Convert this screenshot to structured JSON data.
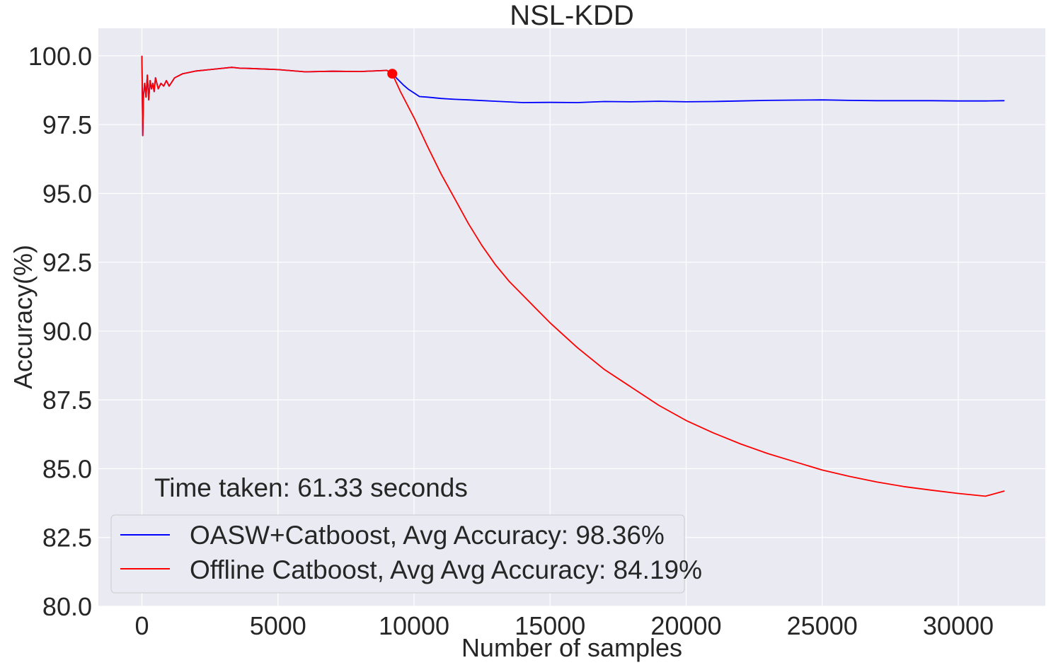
{
  "chart_data": {
    "type": "line",
    "title": "NSL-KDD",
    "xlabel": "Number of samples",
    "ylabel": "Accuracy(%)",
    "xlim": [
      -1600,
      33200
    ],
    "ylim": [
      80.0,
      101.0
    ],
    "xticks": [
      0,
      5000,
      10000,
      15000,
      20000,
      25000,
      30000
    ],
    "yticks": [
      80.0,
      82.5,
      85.0,
      87.5,
      90.0,
      92.5,
      95.0,
      97.5,
      100.0
    ],
    "xtick_labels": [
      "0",
      "5000",
      "10000",
      "15000",
      "20000",
      "25000",
      "30000"
    ],
    "ytick_labels": [
      "80.0",
      "82.5",
      "85.0",
      "87.5",
      "90.0",
      "92.5",
      "95.0",
      "97.5",
      "100.0"
    ],
    "grid": true,
    "legend_position": "lower-left",
    "annotation": "Time taken: 61.33 seconds",
    "drift_marker": {
      "x": 9200,
      "y": 99.35,
      "color": "#ff0000"
    },
    "series": [
      {
        "name": "OASW+Catboost, Avg Accuracy: 98.36%",
        "color": "#0000ff",
        "x": [
          0,
          30,
          60,
          100,
          150,
          200,
          250,
          300,
          350,
          400,
          450,
          500,
          600,
          700,
          800,
          900,
          1000,
          1200,
          1500,
          2000,
          2500,
          3000,
          3300,
          3600,
          4000,
          5000,
          6000,
          7000,
          8000,
          9000,
          9200,
          9400,
          9600,
          9800,
          10000,
          10200,
          10500,
          11000,
          11500,
          12000,
          13000,
          14000,
          15000,
          16000,
          17000,
          18000,
          19000,
          20000,
          21000,
          22000,
          23000,
          24000,
          25000,
          26000,
          27000,
          28000,
          29000,
          30000,
          31000,
          31700
        ],
        "y": [
          100.0,
          97.1,
          98.6,
          99.0,
          98.5,
          99.3,
          98.4,
          99.1,
          98.8,
          99.0,
          98.7,
          99.2,
          98.8,
          99.0,
          98.9,
          99.1,
          98.9,
          99.2,
          99.35,
          99.45,
          99.5,
          99.55,
          99.58,
          99.55,
          99.54,
          99.5,
          99.42,
          99.44,
          99.43,
          99.47,
          99.35,
          99.15,
          98.95,
          98.78,
          98.65,
          98.52,
          98.5,
          98.45,
          98.42,
          98.4,
          98.35,
          98.3,
          98.31,
          98.3,
          98.34,
          98.33,
          98.35,
          98.33,
          98.34,
          98.36,
          98.38,
          98.39,
          98.4,
          98.38,
          98.37,
          98.37,
          98.37,
          98.36,
          98.36,
          98.37
        ]
      },
      {
        "name": "Offline Catboost, Avg Avg Accuracy: 84.19%",
        "color": "#ff0000",
        "x": [
          0,
          30,
          60,
          100,
          150,
          200,
          250,
          300,
          350,
          400,
          450,
          500,
          600,
          700,
          800,
          900,
          1000,
          1200,
          1500,
          2000,
          2500,
          3000,
          3300,
          3600,
          4000,
          5000,
          6000,
          7000,
          8000,
          9000,
          9200,
          9500,
          10000,
          10500,
          11000,
          11500,
          12000,
          12500,
          13000,
          13500,
          14000,
          15000,
          16000,
          17000,
          18000,
          19000,
          20000,
          21000,
          22000,
          23000,
          24000,
          25000,
          26000,
          27000,
          28000,
          29000,
          30000,
          31000,
          31700
        ],
        "y": [
          100.0,
          97.1,
          98.6,
          99.0,
          98.5,
          99.3,
          98.4,
          99.1,
          98.8,
          99.0,
          98.7,
          99.2,
          98.8,
          99.0,
          98.9,
          99.1,
          98.9,
          99.2,
          99.35,
          99.45,
          99.5,
          99.55,
          99.58,
          99.55,
          99.54,
          99.5,
          99.42,
          99.44,
          99.43,
          99.47,
          99.35,
          98.7,
          97.75,
          96.7,
          95.7,
          94.8,
          93.9,
          93.1,
          92.4,
          91.8,
          91.3,
          90.3,
          89.4,
          88.6,
          87.95,
          87.3,
          86.75,
          86.3,
          85.9,
          85.55,
          85.25,
          84.95,
          84.72,
          84.52,
          84.35,
          84.22,
          84.1,
          84.0,
          84.19
        ]
      }
    ]
  }
}
